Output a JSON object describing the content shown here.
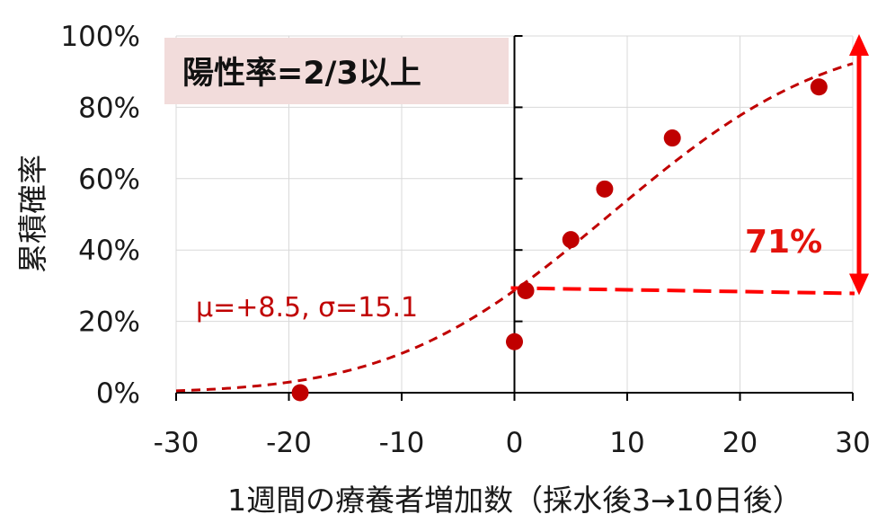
{
  "chart_data": {
    "type": "scatter",
    "xlabel": "1週間の療養者増加数（採水後3→10日後）",
    "ylabel": "累積確率",
    "xlim": [
      -30,
      30
    ],
    "ylim": [
      0,
      100
    ],
    "x_ticks": [
      "-30",
      "-20",
      "-10",
      "0",
      "10",
      "20",
      "30"
    ],
    "y_ticks": [
      "0%",
      "20%",
      "40%",
      "60%",
      "80%",
      "100%"
    ],
    "grid": true,
    "series": [
      {
        "marker": "circle",
        "color": "#c00000",
        "points": [
          {
            "x": -19,
            "y": 0
          },
          {
            "x": 0,
            "y": 14.3
          },
          {
            "x": 1,
            "y": 28.6
          },
          {
            "x": 5,
            "y": 42.9
          },
          {
            "x": 8,
            "y": 57.1
          },
          {
            "x": 14,
            "y": 71.4
          },
          {
            "x": 27,
            "y": 85.7
          }
        ]
      }
    ],
    "fit_curve": {
      "type": "normal_cdf",
      "mu": 8.5,
      "sigma": 15.1,
      "label": "μ=+8.5, σ=15.1",
      "color": "#c00000",
      "style": "dashed"
    },
    "annotation_box": {
      "text": "陽性率=2/3以上",
      "background": "#f2dcdb"
    },
    "baseline_at_zero": {
      "y": 28.6,
      "style": "dashed",
      "color": "#ff0000"
    },
    "difference_arrow": {
      "x": 30,
      "from": 28.6,
      "to": 100,
      "label": "71%",
      "color": "#ff0000"
    }
  }
}
